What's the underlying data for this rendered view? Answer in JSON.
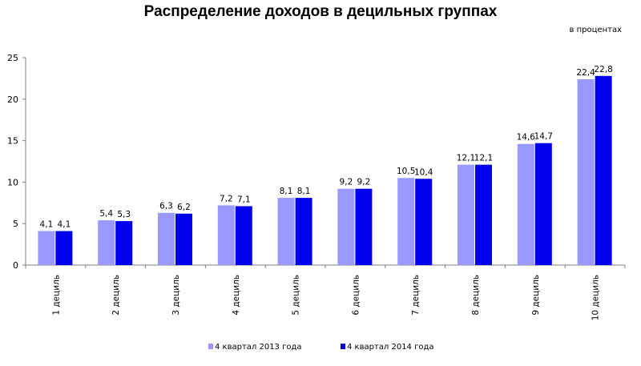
{
  "header": {
    "title": "Распределение доходов в децильных группах",
    "units": "в процентах"
  },
  "colors": {
    "series_2013": "#9999ff",
    "series_2014": "#0000ee",
    "axis": "#808080",
    "grid": "#bfbfbf"
  },
  "chart_data": {
    "type": "bar",
    "title": "Распределение доходов в децильных группах",
    "ylabel": "в процентах",
    "xlabel": "",
    "ylim": [
      0,
      25
    ],
    "yticks": [
      0,
      5,
      10,
      15,
      20,
      25
    ],
    "grid": false,
    "legend_position": "bottom",
    "categories": [
      "1 дециль",
      "2 дециль",
      "3 дециль",
      "4 дециль",
      "5 дециль",
      "6 дециль",
      "7 дециль",
      "8 дециль",
      "9 дециль",
      "10 дециль"
    ],
    "series": [
      {
        "name": "4 квартал 2013 года",
        "values": [
          4.1,
          5.4,
          6.3,
          7.2,
          8.1,
          9.2,
          10.5,
          12.1,
          14.6,
          22.4
        ],
        "labels": [
          "4,1",
          "5,4",
          "6,3",
          "7,2",
          "8,1",
          "9,2",
          "10,5",
          "12,1",
          "14,6",
          "22,4"
        ]
      },
      {
        "name": "4 квартал 2014 года",
        "values": [
          4.1,
          5.3,
          6.2,
          7.1,
          8.1,
          9.2,
          10.4,
          12.1,
          14.7,
          22.8
        ],
        "labels": [
          "4,1",
          "5,3",
          "6,2",
          "7,1",
          "8,1",
          "9,2",
          "10,4",
          "12,1",
          "14,7",
          "22,8"
        ]
      }
    ]
  }
}
